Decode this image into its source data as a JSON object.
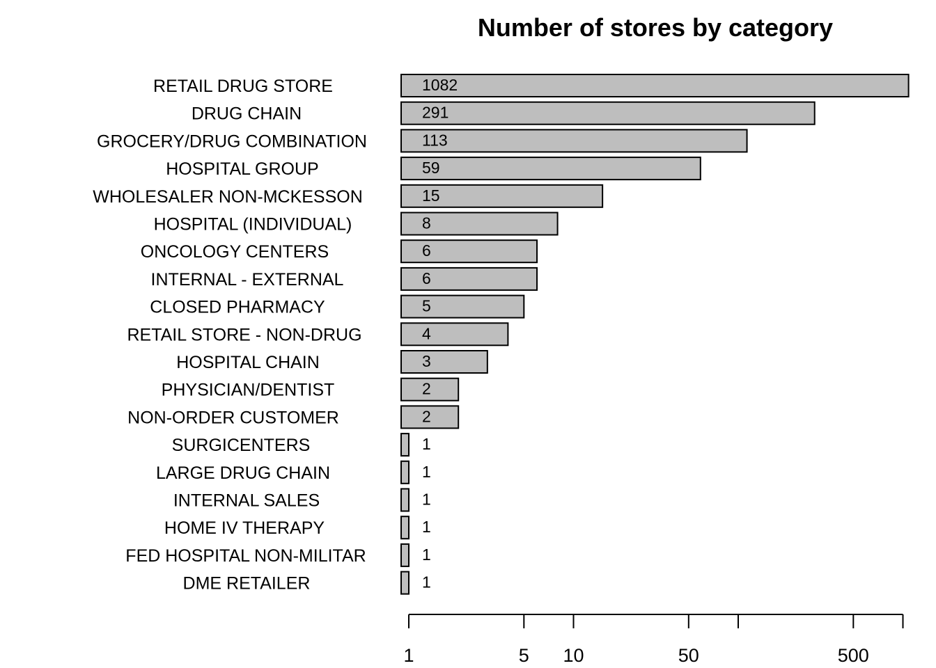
{
  "chart_data": {
    "type": "bar",
    "orientation": "horizontal",
    "title": "Number of stores by category",
    "xlabel": "",
    "ylabel": "",
    "x_scale": "log",
    "categories": [
      "RETAIL DRUG STORE",
      "DRUG CHAIN",
      "GROCERY/DRUG COMBINATION",
      "HOSPITAL GROUP",
      "WHOLESALER NON-MCKESSON",
      "HOSPITAL (INDIVIDUAL)",
      "ONCOLOGY CENTERS",
      "INTERNAL - EXTERNAL",
      "CLOSED PHARMACY",
      "RETAIL STORE - NON-DRUG",
      "HOSPITAL CHAIN",
      "PHYSICIAN/DENTIST",
      "NON-ORDER CUSTOMER",
      "SURGICENTERS",
      "LARGE DRUG CHAIN",
      "INTERNAL SALES",
      "HOME IV THERAPY",
      "FED HOSPITAL NON-MILITAR",
      "DME RETAILER"
    ],
    "values": [
      1082,
      291,
      113,
      59,
      15,
      8,
      6,
      6,
      5,
      4,
      3,
      2,
      2,
      1,
      1,
      1,
      1,
      1,
      1
    ],
    "value_labels": [
      "1082",
      "291",
      "113",
      "59",
      "15",
      "8",
      "6",
      "6",
      "5",
      "4",
      "3",
      "2",
      "2",
      "1",
      "1",
      "1",
      "1",
      "1",
      "1"
    ],
    "x_ticks": [
      1,
      5,
      10,
      50,
      100,
      500,
      1000
    ],
    "x_tick_labels": [
      "1",
      "5",
      "10",
      "50",
      "",
      "500",
      ""
    ],
    "bar_color": "#bebebe",
    "grid": false,
    "legend": "none"
  }
}
